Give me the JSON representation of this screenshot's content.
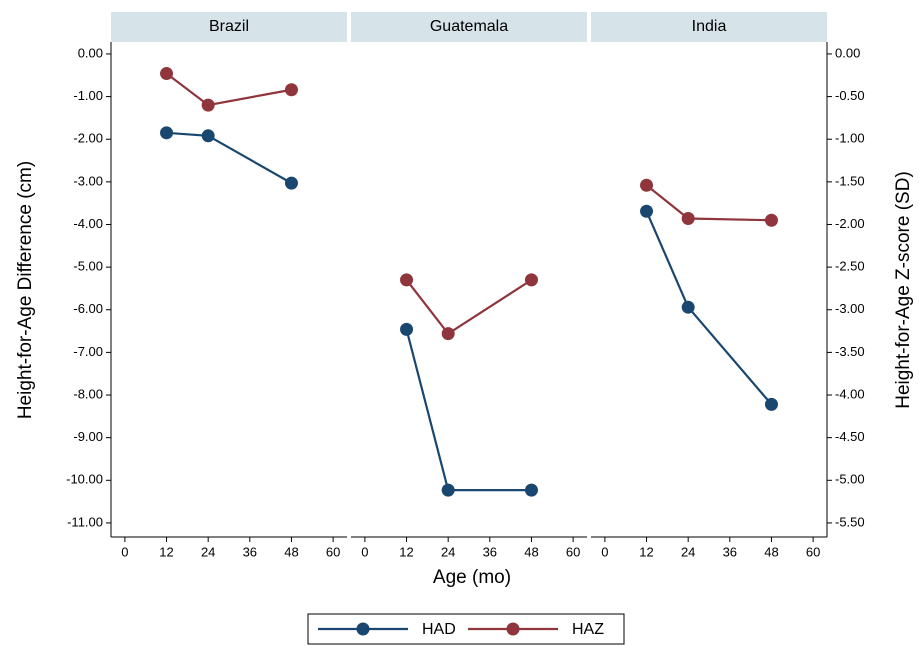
{
  "chart_data": {
    "type": "line",
    "xlabel": "Age (mo)",
    "ylabel": "Height-for-Age Difference (cm)",
    "y2label": "Height-for-Age Z-score (SD)",
    "series": [
      {
        "name": "HAD",
        "color": "#1a476f",
        "axis": "y"
      },
      {
        "name": "HAZ",
        "color": "#90353b",
        "axis": "y2"
      }
    ],
    "x": [
      12,
      24,
      48
    ],
    "xlim": [
      -4,
      64
    ],
    "xticks": [
      0,
      12,
      24,
      36,
      48,
      60
    ],
    "ylim": [
      -11.33,
      0.28
    ],
    "yticks": [
      {
        "value": 0,
        "label": "0.00"
      },
      {
        "value": -1,
        "label": "-1.00"
      },
      {
        "value": -2,
        "label": "-2.00"
      },
      {
        "value": -3,
        "label": "-3.00"
      },
      {
        "value": -4,
        "label": "-4.00"
      },
      {
        "value": -5,
        "label": "-5.00"
      },
      {
        "value": -6,
        "label": "-6.00"
      },
      {
        "value": -7,
        "label": "-7.00"
      },
      {
        "value": -8,
        "label": "-8.00"
      },
      {
        "value": -9,
        "label": "-9.00"
      },
      {
        "value": -10,
        "label": "-10.00"
      },
      {
        "value": -11,
        "label": "-11.00"
      }
    ],
    "y2lim": [
      -5.665,
      0.14
    ],
    "y2ticks": [
      {
        "value": 0,
        "label": "0.00"
      },
      {
        "value": -0.5,
        "label": "-0.50"
      },
      {
        "value": -1,
        "label": "-1.00"
      },
      {
        "value": -1.5,
        "label": "-1.50"
      },
      {
        "value": -2,
        "label": "-2.00"
      },
      {
        "value": -2.5,
        "label": "-2.50"
      },
      {
        "value": -3,
        "label": "-3.00"
      },
      {
        "value": -3.5,
        "label": "-3.50"
      },
      {
        "value": -4,
        "label": "-4.00"
      },
      {
        "value": -4.5,
        "label": "-4.50"
      },
      {
        "value": -5,
        "label": "-5.00"
      },
      {
        "value": -5.5,
        "label": "-5.50"
      }
    ],
    "facets": [
      {
        "title": "Brazil",
        "values": [
          [
            -1.85,
            -1.92,
            -3.03
          ],
          [
            -0.23,
            -0.6,
            -0.42
          ]
        ]
      },
      {
        "title": "Guatemala",
        "values": [
          [
            -6.46,
            -10.23,
            -10.23
          ],
          [
            -2.65,
            -3.28,
            -2.65
          ]
        ]
      },
      {
        "title": "India",
        "values": [
          [
            -3.69,
            -5.94,
            -8.22
          ],
          [
            -1.54,
            -1.93,
            -1.95
          ]
        ]
      }
    ]
  }
}
